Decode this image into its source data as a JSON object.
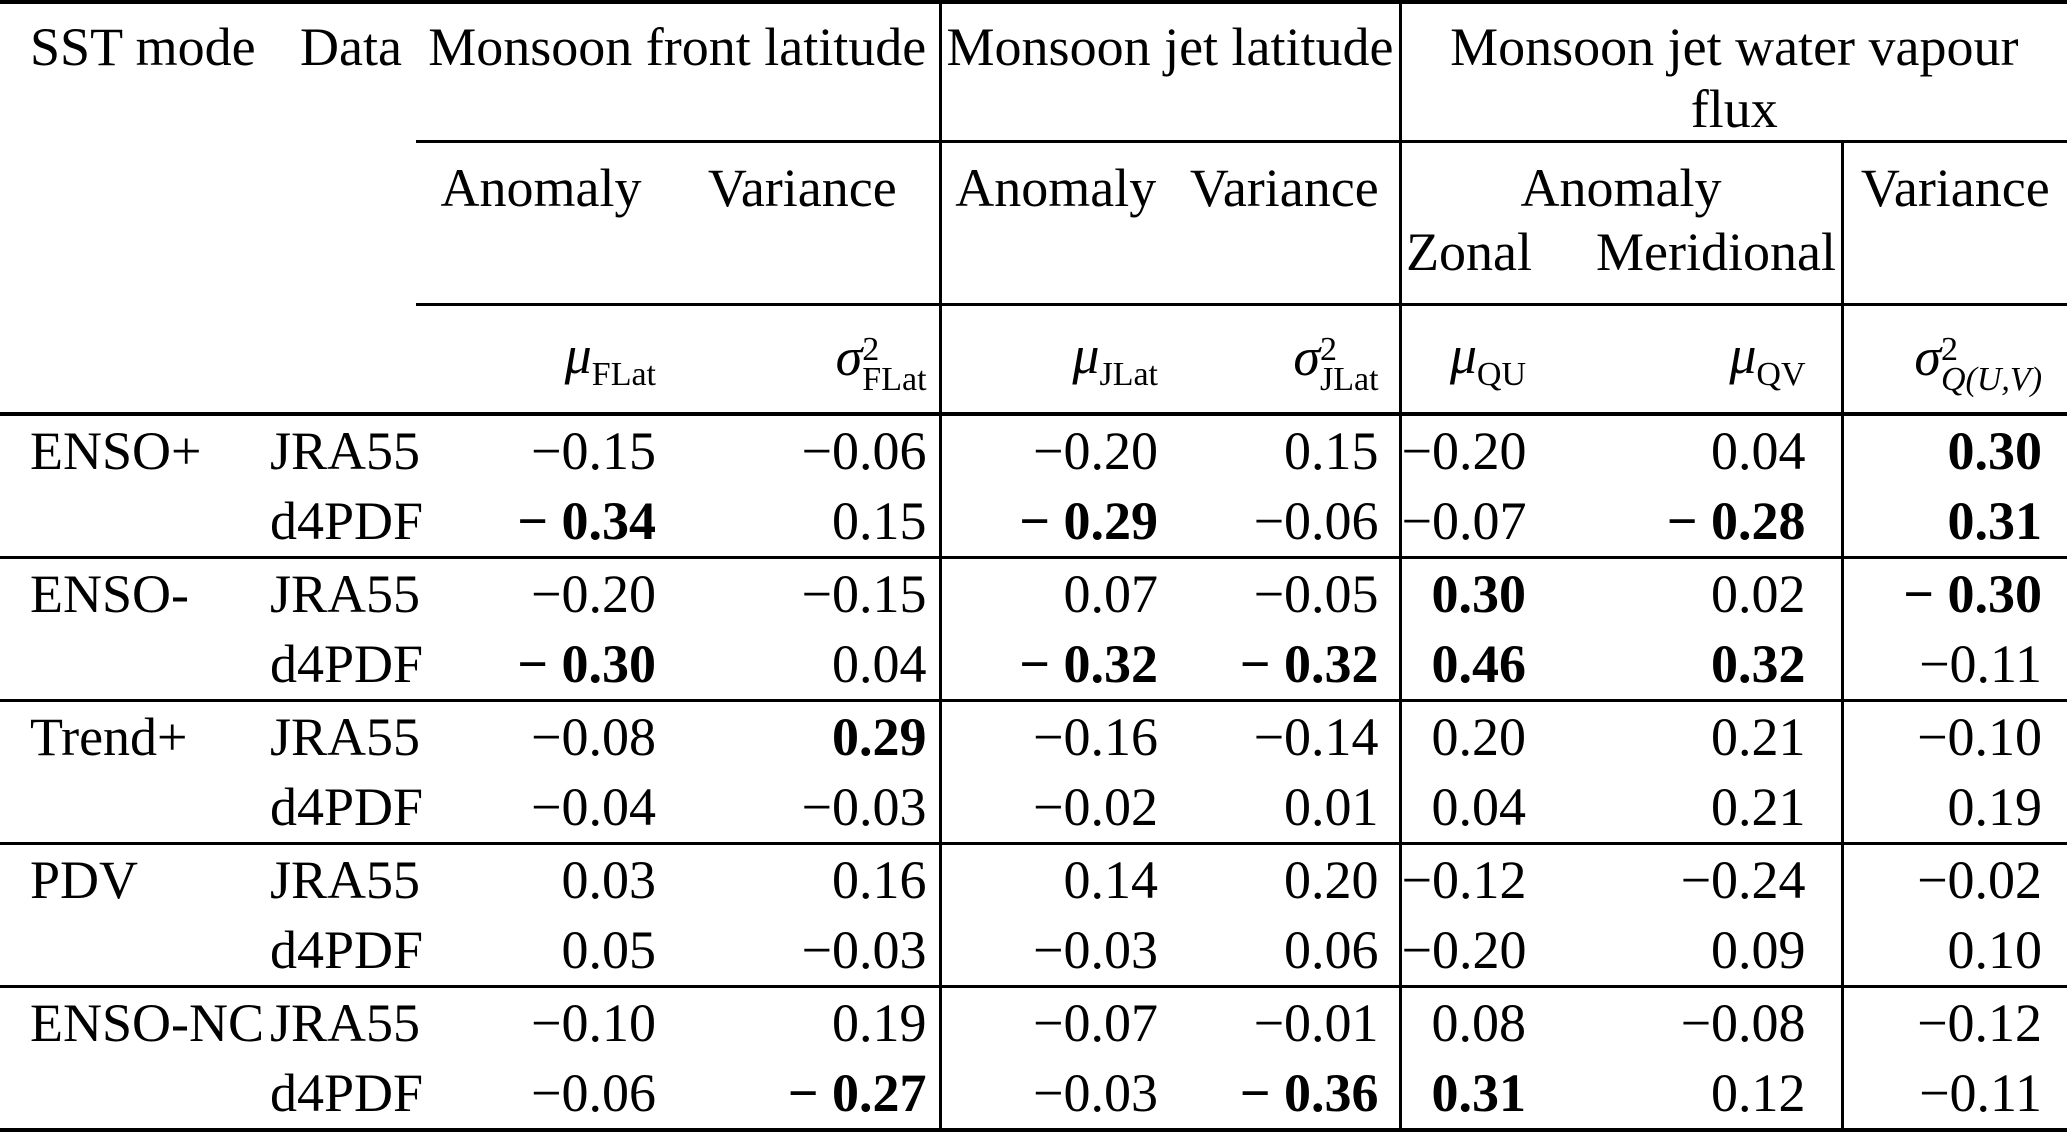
{
  "meta": {
    "text_color": "#000000",
    "background_color": "#ffffff",
    "description": "Correlation statistics table: SST modes vs monsoon front/jet metrics, JRA55 and d4PDF data"
  },
  "header": {
    "col_sst": "SST mode",
    "col_data": "Data",
    "group1": "Monsoon front latitude",
    "group2": "Monsoon jet latitude",
    "group3": "Monsoon jet water vapour flux",
    "anomaly1": "Anomaly",
    "variance1": "Variance",
    "anomaly2": "Anomaly",
    "variance2": "Variance",
    "anomaly3": "Anomaly",
    "variance3": "Variance",
    "zonal": "Zonal",
    "meridional": "Meridional",
    "symbols": [
      {
        "base": "μ",
        "sup": "",
        "sub": "FLat",
        "sub_italic": false
      },
      {
        "base": "σ",
        "sup": "2",
        "sub": "FLat",
        "sub_italic": false
      },
      {
        "base": "μ",
        "sup": "",
        "sub": "JLat",
        "sub_italic": false
      },
      {
        "base": "σ",
        "sup": "2",
        "sub": "JLat",
        "sub_italic": false
      },
      {
        "base": "μ",
        "sup": "",
        "sub": "QU",
        "sub_italic": false
      },
      {
        "base": "μ",
        "sup": "",
        "sub": "QV",
        "sub_italic": false
      },
      {
        "base": "σ",
        "sup": "2",
        "sub": "Q(U,V)",
        "sub_italic": true
      }
    ]
  },
  "groups": [
    {
      "mode": "ENSO+",
      "rows": [
        {
          "data": "JRA55",
          "values": [
            "−0.15",
            "−0.06",
            "−0.20",
            "0.15",
            "−0.20",
            "0.04",
            "0.30"
          ],
          "bold": [
            false,
            false,
            false,
            false,
            false,
            false,
            true
          ]
        },
        {
          "data": "d4PDF",
          "values": [
            "− 0.34",
            "0.15",
            "− 0.29",
            "−0.06",
            "−0.07",
            "− 0.28",
            "0.31"
          ],
          "bold": [
            true,
            false,
            true,
            false,
            false,
            true,
            true
          ]
        }
      ]
    },
    {
      "mode": "ENSO-",
      "rows": [
        {
          "data": "JRA55",
          "values": [
            "−0.20",
            "−0.15",
            "0.07",
            "−0.05",
            "0.30",
            "0.02",
            "− 0.30"
          ],
          "bold": [
            false,
            false,
            false,
            false,
            true,
            false,
            true
          ]
        },
        {
          "data": "d4PDF",
          "values": [
            "− 0.30",
            "0.04",
            "− 0.32",
            "− 0.32",
            "0.46",
            "0.32",
            "−0.11"
          ],
          "bold": [
            true,
            false,
            true,
            true,
            true,
            true,
            false
          ]
        }
      ]
    },
    {
      "mode": "Trend+",
      "rows": [
        {
          "data": "JRA55",
          "values": [
            "−0.08",
            "0.29",
            "−0.16",
            "−0.14",
            "0.20",
            "0.21",
            "−0.10"
          ],
          "bold": [
            false,
            true,
            false,
            false,
            false,
            false,
            false
          ]
        },
        {
          "data": "d4PDF",
          "values": [
            "−0.04",
            "−0.03",
            "−0.02",
            "0.01",
            "0.04",
            "0.21",
            "0.19"
          ],
          "bold": [
            false,
            false,
            false,
            false,
            false,
            false,
            false
          ]
        }
      ]
    },
    {
      "mode": "PDV",
      "rows": [
        {
          "data": "JRA55",
          "values": [
            "0.03",
            "0.16",
            "0.14",
            "0.20",
            "−0.12",
            "−0.24",
            "−0.02"
          ],
          "bold": [
            false,
            false,
            false,
            false,
            false,
            false,
            false
          ]
        },
        {
          "data": "d4PDF",
          "values": [
            "0.05",
            "−0.03",
            "−0.03",
            "0.06",
            "−0.20",
            "0.09",
            "0.10"
          ],
          "bold": [
            false,
            false,
            false,
            false,
            false,
            false,
            false
          ]
        }
      ]
    },
    {
      "mode": "ENSO-NC",
      "rows": [
        {
          "data": "JRA55",
          "values": [
            "−0.10",
            "0.19",
            "−0.07",
            "−0.01",
            "0.08",
            "−0.08",
            "−0.12"
          ],
          "bold": [
            false,
            false,
            false,
            false,
            false,
            false,
            false
          ]
        },
        {
          "data": "d4PDF",
          "values": [
            "−0.06",
            "− 0.27",
            "−0.03",
            "− 0.36",
            "0.31",
            "0.12",
            "−0.11"
          ],
          "bold": [
            false,
            true,
            false,
            true,
            true,
            false,
            false
          ]
        }
      ]
    }
  ]
}
